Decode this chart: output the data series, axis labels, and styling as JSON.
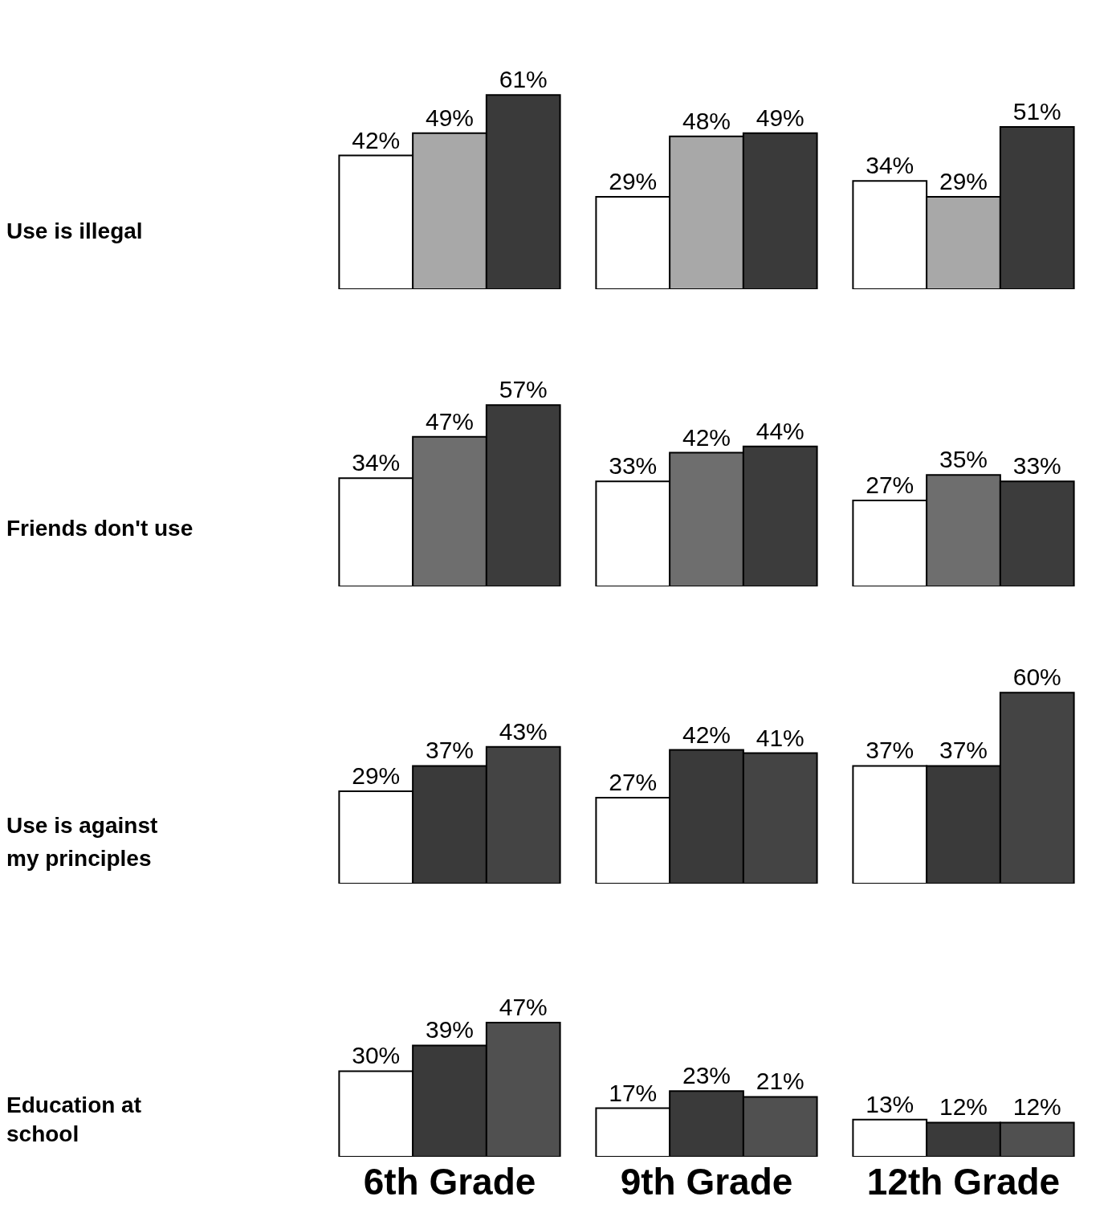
{
  "chart_data": [
    {
      "type": "bar",
      "ylabel": "Use is illegal",
      "categories": [
        null,
        null,
        null
      ],
      "tick_labels": false,
      "series": [
        {
          "color": "#ffffff",
          "values": [
            42,
            29,
            34
          ],
          "value_labels": [
            "42%",
            "29%",
            "34%"
          ]
        },
        {
          "color": "#a8a8a8",
          "values": [
            49,
            48,
            29
          ],
          "value_labels": [
            "49%",
            "48%",
            "29%"
          ]
        },
        {
          "color": "#3a3a3a",
          "values": [
            61,
            49,
            51
          ],
          "value_labels": [
            "61%",
            "49%",
            "51%"
          ]
        }
      ]
    },
    {
      "type": "bar",
      "ylabel": "Friends don't use",
      "categories": [
        null,
        null,
        null
      ],
      "tick_labels": false,
      "series": [
        {
          "color": "#ffffff",
          "values": [
            34,
            33,
            27
          ],
          "value_labels": [
            "34%",
            "33%",
            "27%"
          ]
        },
        {
          "color": "#6e6e6e",
          "values": [
            47,
            42,
            35
          ],
          "value_labels": [
            "47%",
            "42%",
            "35%"
          ]
        },
        {
          "color": "#3c3c3c",
          "values": [
            57,
            44,
            33
          ],
          "value_labels": [
            "57%",
            "44%",
            "33%"
          ]
        }
      ]
    },
    {
      "type": "bar",
      "ylabel": "Use is against my principles",
      "categories": [
        null,
        null,
        null
      ],
      "tick_labels": false,
      "series": [
        {
          "color": "#ffffff",
          "values": [
            29,
            27,
            37
          ],
          "value_labels": [
            "29%",
            "27%",
            "37%"
          ]
        },
        {
          "color": "#3a3a3a",
          "values": [
            37,
            42,
            37
          ],
          "value_labels": [
            "37%",
            "42%",
            "37%"
          ]
        },
        {
          "color": "#444444",
          "values": [
            43,
            41,
            60
          ],
          "value_labels": [
            "43%",
            "41%",
            "60%"
          ]
        }
      ]
    },
    {
      "type": "bar",
      "ylabel": "Education at school",
      "categories": [
        "6th Grade",
        "9th Grade",
        "12th Grade"
      ],
      "tick_labels": "x",
      "series": [
        {
          "color": "#ffffff",
          "values": [
            30,
            17,
            13
          ],
          "value_labels": [
            "30%",
            "17%",
            "13%"
          ]
        },
        {
          "color": "#3a3a3a",
          "values": [
            39,
            23,
            12
          ],
          "value_labels": [
            "39%",
            "23%",
            "12%"
          ]
        },
        {
          "color": "#505050",
          "values": [
            47,
            21,
            12
          ],
          "value_labels": [
            "47%",
            "21%",
            "12%"
          ]
        }
      ]
    }
  ]
}
